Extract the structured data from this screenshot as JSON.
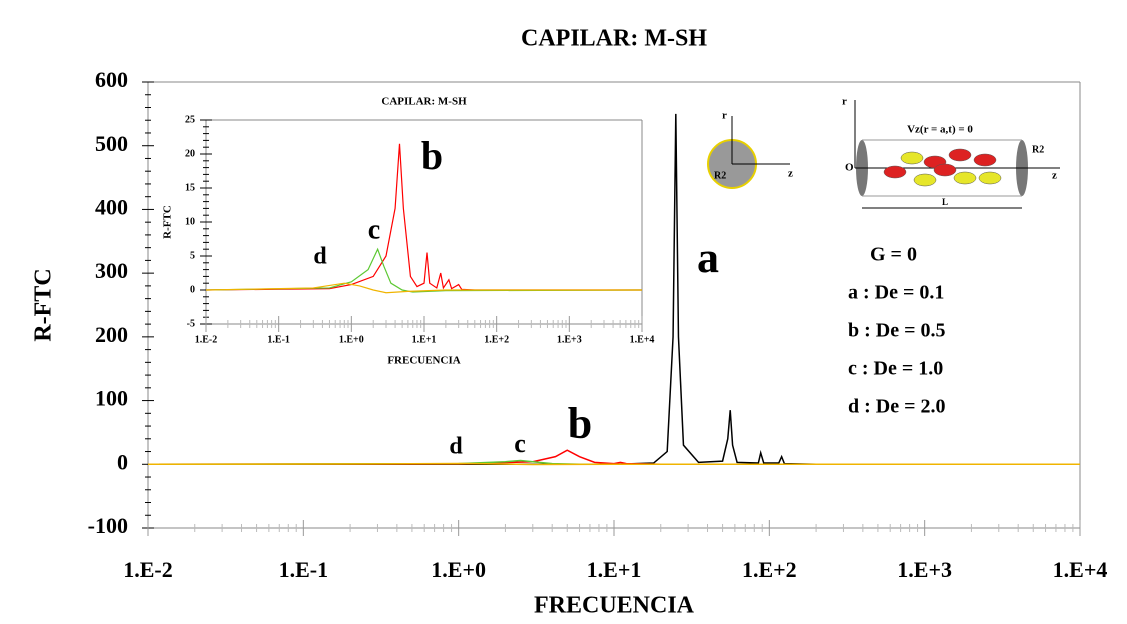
{
  "chart_data": [
    {
      "type": "line",
      "title": "CAPILAR: M-SH",
      "x_label": "FRECUENCIA",
      "y_label": "R-FTC",
      "log_x": true,
      "xlim": [
        0.01,
        10000
      ],
      "xticks": [
        {
          "value": 0.01,
          "label": "1.E-2"
        },
        {
          "value": 0.1,
          "label": "1.E-1"
        },
        {
          "value": 1,
          "label": "1.E+0"
        },
        {
          "value": 10,
          "label": "1.E+1"
        },
        {
          "value": 100,
          "label": "1.E+2"
        },
        {
          "value": 1000,
          "label": "1.E+3"
        },
        {
          "value": 10000,
          "label": "1.E+4"
        }
      ],
      "ylim": [
        -100,
        600
      ],
      "yticks": [
        -100,
        0,
        100,
        200,
        300,
        400,
        500,
        600
      ],
      "series": [
        {
          "name": "a",
          "color": "#000000",
          "x": [
            0.01,
            10,
            18,
            22,
            24,
            25,
            26,
            28,
            35,
            50,
            54,
            56,
            58,
            62,
            85,
            88,
            92,
            115,
            120,
            125,
            200,
            10000
          ],
          "values": [
            0,
            0,
            2,
            20,
            200,
            550,
            200,
            30,
            3,
            5,
            40,
            85,
            30,
            3,
            2,
            18,
            2,
            2,
            12,
            1,
            0,
            0
          ]
        },
        {
          "name": "b",
          "color": "#ff0000",
          "x": [
            0.01,
            1,
            3,
            4.2,
            5,
            6,
            7.5,
            10,
            11,
            12,
            20,
            10000
          ],
          "values": [
            0,
            0.5,
            4,
            12,
            22,
            12,
            3,
            1,
            3,
            1,
            0,
            0
          ]
        },
        {
          "name": "c",
          "color": "#5cc832",
          "x": [
            0.01,
            1,
            2,
            2.5,
            3,
            4,
            6,
            10000
          ],
          "values": [
            0,
            1,
            4,
            6,
            4,
            1,
            0,
            0
          ]
        },
        {
          "name": "d",
          "color": "#f0b400",
          "x": [
            0.01,
            0.5,
            1,
            1.5,
            3,
            10,
            10000
          ],
          "values": [
            0,
            0.8,
            1.2,
            0.8,
            -0.3,
            0,
            0
          ]
        }
      ],
      "peak_labels": [
        "a",
        "b",
        "c",
        "d"
      ]
    },
    {
      "type": "line",
      "title": "CAPILAR: M-SH",
      "x_label": "FRECUENCIA",
      "y_label": "R-FTC",
      "log_x": true,
      "xlim": [
        0.01,
        10000
      ],
      "xticks": [
        {
          "value": 0.01,
          "label": "1.E-2"
        },
        {
          "value": 0.1,
          "label": "1.E-1"
        },
        {
          "value": 1,
          "label": "1.E+0"
        },
        {
          "value": 10,
          "label": "1.E+1"
        },
        {
          "value": 100,
          "label": "1.E+2"
        },
        {
          "value": 1000,
          "label": "1.E+3"
        },
        {
          "value": 10000,
          "label": "1.E+4"
        }
      ],
      "ylim": [
        -5,
        25
      ],
      "yticks": [
        -5,
        0,
        5,
        10,
        15,
        20,
        25
      ],
      "series": [
        {
          "name": "b",
          "color": "#ff0000",
          "x": [
            0.01,
            0.5,
            1,
            2,
            3,
            4,
            4.6,
            5.2,
            6.5,
            8,
            10,
            11,
            12,
            15,
            17,
            18.5,
            22,
            24,
            30,
            33,
            50,
            10000
          ],
          "values": [
            0,
            0.2,
            0.8,
            2,
            5,
            12,
            21.5,
            12,
            2,
            0.5,
            1,
            5.5,
            1,
            0.3,
            2.5,
            0.3,
            1.5,
            0.2,
            0.8,
            0.1,
            0,
            0
          ]
        },
        {
          "name": "c",
          "color": "#5cc832",
          "x": [
            0.01,
            0.5,
            1,
            1.7,
            2.3,
            2.8,
            3.5,
            5,
            7,
            20,
            10000
          ],
          "values": [
            0,
            0.3,
            1.2,
            3,
            6,
            3.5,
            1,
            0,
            -0.3,
            -0.1,
            0
          ]
        },
        {
          "name": "d",
          "color": "#f0b400",
          "x": [
            0.01,
            0.3,
            0.8,
            1.3,
            2,
            3,
            6,
            20,
            10000
          ],
          "values": [
            0,
            0.3,
            1,
            0.6,
            0,
            -0.4,
            -0.2,
            0,
            0
          ]
        }
      ],
      "peak_labels": [
        "b",
        "c",
        "d"
      ]
    }
  ],
  "legend_text": [
    "G = 0",
    "a : De = 0.1",
    "b : De = 0.5",
    "c : De = 1.0",
    "d : De = 2.0"
  ],
  "diagram_cross": {
    "r": "r",
    "z": "z",
    "radius": "R2"
  },
  "diagram_tube": {
    "r": "r",
    "condition": "Vz(r = a,t) = 0",
    "radius": "R2",
    "origin": "O",
    "z": "z",
    "length": "L"
  }
}
